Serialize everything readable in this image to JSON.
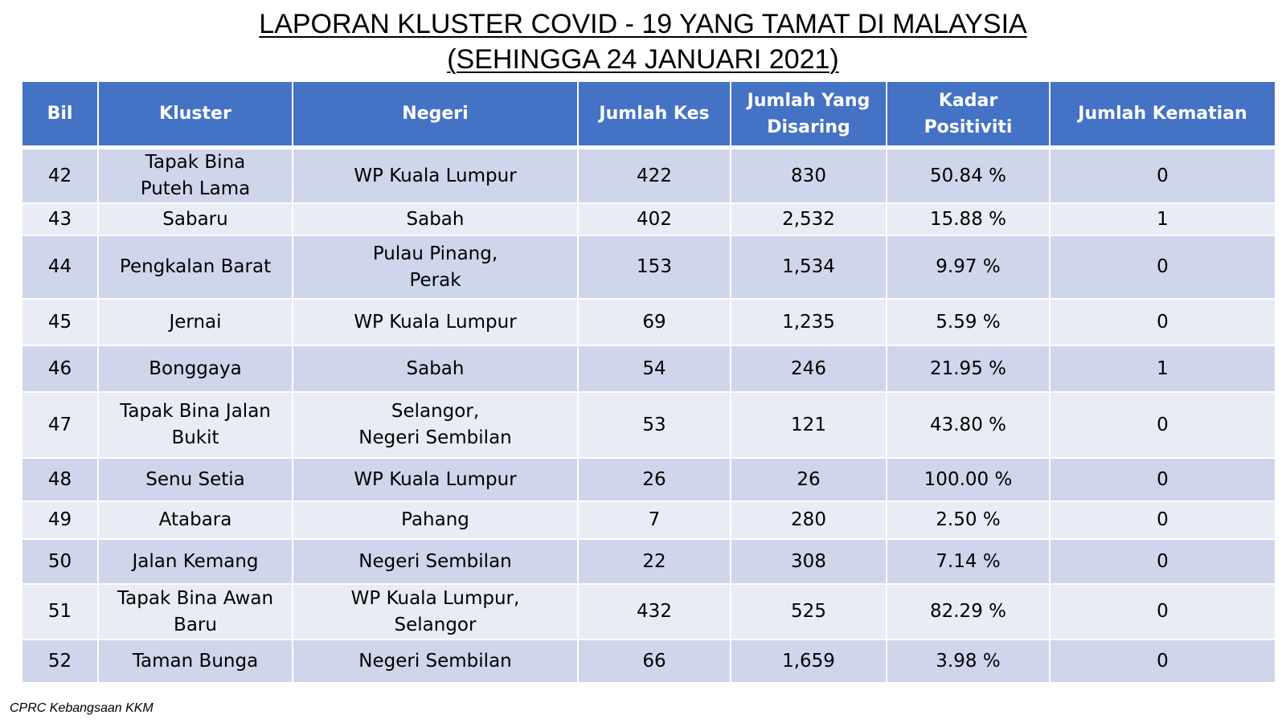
{
  "title": {
    "line1": "LAPORAN KLUSTER COVID - 19 YANG TAMAT DI MALAYSIA",
    "line2": "(SEHINGGA  24 JANUARI 2021)"
  },
  "table": {
    "headers": [
      "Bil",
      "Kluster",
      "Negeri",
      "Jumlah Kes",
      "Jumlah Yang Disaring",
      "Kadar Positiviti",
      "Jumlah Kematian"
    ],
    "rows": [
      [
        "42",
        "Tapak Bina\nPuteh Lama",
        "WP Kuala Lumpur",
        "422",
        "830",
        "50.84 %",
        "0"
      ],
      [
        "43",
        "Sabaru",
        "Sabah",
        "402",
        "2,532",
        "15.88 %",
        "1"
      ],
      [
        "44",
        "Pengkalan Barat",
        "Pulau Pinang,\nPerak",
        "153",
        "1,534",
        "9.97 %",
        "0"
      ],
      [
        "45",
        "Jernai",
        "WP Kuala Lumpur",
        "69",
        "1,235",
        "5.59 %",
        "0"
      ],
      [
        "46",
        "Bonggaya",
        "Sabah",
        "54",
        "246",
        "21.95 %",
        "1"
      ],
      [
        "47",
        "Tapak Bina Jalan\nBukit",
        "Selangor,\nNegeri Sembilan",
        "53",
        "121",
        "43.80 %",
        "0"
      ],
      [
        "48",
        "Senu Setia",
        "WP Kuala Lumpur",
        "26",
        "26",
        "100.00 %",
        "0"
      ],
      [
        "49",
        "Atabara",
        "Pahang",
        "7",
        "280",
        "2.50 %",
        "0"
      ],
      [
        "50",
        "Jalan Kemang",
        "Negeri Sembilan",
        "22",
        "308",
        "7.14 %",
        "0"
      ],
      [
        "51",
        "Tapak Bina Awan\nBaru",
        "WP Kuala Lumpur,\nSelangor",
        "432",
        "525",
        "82.29 %",
        "0"
      ],
      [
        "52",
        "Taman Bunga",
        "Negeri Sembilan",
        "66",
        "1,659",
        "3.98 %",
        "0"
      ]
    ]
  },
  "footer": "CPRC Kebangsaan KKM",
  "colors": {
    "header_bg": "#4472c4",
    "row_odd": "#cfd5ea",
    "row_even": "#e9ebf5"
  }
}
